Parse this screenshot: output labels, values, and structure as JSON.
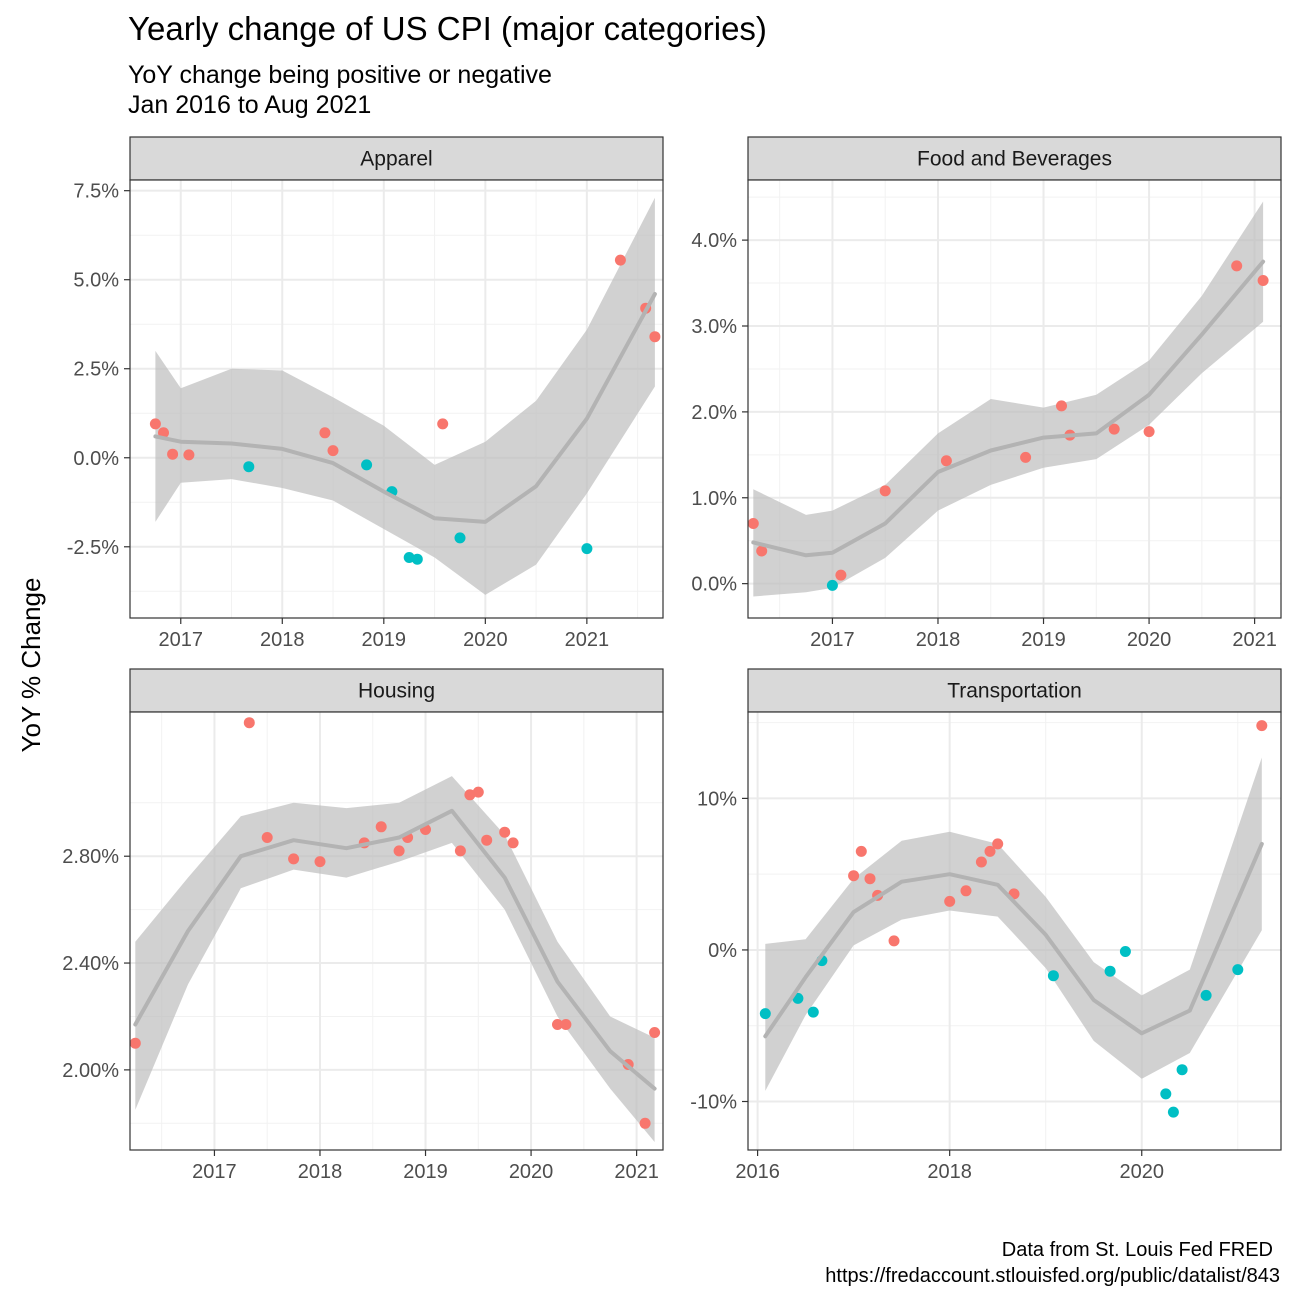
{
  "chart_title": "Yearly change of US CPI (major categories)",
  "subtitle_lines": [
    "YoY change being positive or negative",
    "Jan 2016 to Aug 2021"
  ],
  "y_axis_label": "YoY % Change",
  "caption_lines": [
    "Data from St. Louis Fed FRED",
    "https://fredaccount.stlouisfed.org/public/datalist/843"
  ],
  "colors": {
    "positive": "#F8766D",
    "negative": "#00BFC4",
    "smooth_line": "#B3B3B3",
    "ribbon": "#BEBEBE",
    "strip_bg": "#D9D9D9",
    "grid_major": "#EBEBEB",
    "grid_minor": "#F2F2F2"
  },
  "chart_data": [
    {
      "type": "scatter",
      "panel": "Apparel",
      "x_unit": "year",
      "xlim": [
        2016.5,
        2021.75
      ],
      "ylim": [
        -4.5,
        7.8
      ],
      "x_ticks": [
        2017,
        2018,
        2019,
        2020,
        2021
      ],
      "x_tick_labels": [
        "2017",
        "2018",
        "2019",
        "2020",
        "2021"
      ],
      "y_ticks": [
        -2.5,
        0,
        2.5,
        5,
        7.5
      ],
      "y_tick_labels": [
        "-2.5%",
        "0.0%",
        "2.5%",
        "5.0%",
        "7.5%"
      ],
      "points": [
        {
          "x": 2016.75,
          "y": 0.95
        },
        {
          "x": 2016.83,
          "y": 0.7
        },
        {
          "x": 2016.92,
          "y": 0.1
        },
        {
          "x": 2017.08,
          "y": 0.08
        },
        {
          "x": 2017.67,
          "y": -0.25
        },
        {
          "x": 2018.42,
          "y": 0.7
        },
        {
          "x": 2018.5,
          "y": 0.2
        },
        {
          "x": 2018.83,
          "y": -0.2
        },
        {
          "x": 2019.08,
          "y": -0.95
        },
        {
          "x": 2019.25,
          "y": -2.8
        },
        {
          "x": 2019.33,
          "y": -2.85
        },
        {
          "x": 2019.58,
          "y": 0.95
        },
        {
          "x": 2019.75,
          "y": -2.25
        },
        {
          "x": 2021.0,
          "y": -2.55
        },
        {
          "x": 2021.33,
          "y": 5.55
        },
        {
          "x": 2021.58,
          "y": 4.2
        },
        {
          "x": 2021.67,
          "y": 3.4
        }
      ],
      "smooth": [
        {
          "x": 2016.75,
          "y": 0.6,
          "lo": -1.8,
          "hi": 3.0
        },
        {
          "x": 2017.0,
          "y": 0.45,
          "lo": -0.7,
          "hi": 1.95
        },
        {
          "x": 2017.5,
          "y": 0.4,
          "lo": -0.6,
          "hi": 2.5
        },
        {
          "x": 2018.0,
          "y": 0.25,
          "lo": -0.85,
          "hi": 2.45
        },
        {
          "x": 2018.5,
          "y": -0.15,
          "lo": -1.2,
          "hi": 1.7
        },
        {
          "x": 2019.0,
          "y": -0.95,
          "lo": -2.0,
          "hi": 0.9
        },
        {
          "x": 2019.5,
          "y": -1.7,
          "lo": -2.8,
          "hi": -0.2
        },
        {
          "x": 2020.0,
          "y": -1.8,
          "lo": -3.85,
          "hi": 0.45
        },
        {
          "x": 2020.5,
          "y": -0.8,
          "lo": -3.0,
          "hi": 1.6
        },
        {
          "x": 2021.0,
          "y": 1.1,
          "lo": -1.0,
          "hi": 3.6
        },
        {
          "x": 2021.67,
          "y": 4.6,
          "lo": 2.0,
          "hi": 7.3
        }
      ]
    },
    {
      "type": "scatter",
      "panel": "Food and Beverages",
      "x_unit": "year",
      "xlim": [
        2016.2,
        2021.25
      ],
      "ylim": [
        -0.4,
        4.7
      ],
      "x_ticks": [
        2017,
        2018,
        2019,
        2020,
        2021
      ],
      "x_tick_labels": [
        "2017",
        "2018",
        "2019",
        "2020",
        "2021"
      ],
      "y_ticks": [
        0,
        1,
        2,
        3,
        4
      ],
      "y_tick_labels": [
        "0.0%",
        "1.0%",
        "2.0%",
        "3.0%",
        "4.0%"
      ],
      "points": [
        {
          "x": 2016.25,
          "y": 0.7
        },
        {
          "x": 2016.33,
          "y": 0.38
        },
        {
          "x": 2017.0,
          "y": -0.02
        },
        {
          "x": 2017.08,
          "y": 0.1
        },
        {
          "x": 2017.5,
          "y": 1.08
        },
        {
          "x": 2018.08,
          "y": 1.43
        },
        {
          "x": 2018.83,
          "y": 1.47
        },
        {
          "x": 2019.17,
          "y": 2.07
        },
        {
          "x": 2019.25,
          "y": 1.73
        },
        {
          "x": 2019.67,
          "y": 1.8
        },
        {
          "x": 2020.0,
          "y": 1.77
        },
        {
          "x": 2020.83,
          "y": 3.7
        },
        {
          "x": 2021.08,
          "y": 3.53
        }
      ],
      "smooth": [
        {
          "x": 2016.25,
          "y": 0.48,
          "lo": -0.15,
          "hi": 1.1
        },
        {
          "x": 2016.75,
          "y": 0.33,
          "lo": -0.1,
          "hi": 0.8
        },
        {
          "x": 2017.0,
          "y": 0.36,
          "lo": -0.05,
          "hi": 0.85
        },
        {
          "x": 2017.5,
          "y": 0.7,
          "lo": 0.3,
          "hi": 1.15
        },
        {
          "x": 2018.0,
          "y": 1.3,
          "lo": 0.85,
          "hi": 1.75
        },
        {
          "x": 2018.5,
          "y": 1.55,
          "lo": 1.15,
          "hi": 2.15
        },
        {
          "x": 2019.0,
          "y": 1.7,
          "lo": 1.35,
          "hi": 2.05
        },
        {
          "x": 2019.5,
          "y": 1.75,
          "lo": 1.45,
          "hi": 2.2
        },
        {
          "x": 2020.0,
          "y": 2.2,
          "lo": 1.85,
          "hi": 2.6
        },
        {
          "x": 2020.5,
          "y": 2.9,
          "lo": 2.45,
          "hi": 3.35
        },
        {
          "x": 2021.08,
          "y": 3.75,
          "lo": 3.05,
          "hi": 4.45
        }
      ]
    },
    {
      "type": "scatter",
      "panel": "Housing",
      "x_unit": "year",
      "xlim": [
        2016.2,
        2021.25
      ],
      "ylim": [
        1.7,
        3.34
      ],
      "x_ticks": [
        2017,
        2018,
        2019,
        2020,
        2021
      ],
      "x_tick_labels": [
        "2017",
        "2018",
        "2019",
        "2020",
        "2021"
      ],
      "y_ticks": [
        2.0,
        2.4,
        2.8
      ],
      "y_tick_labels": [
        "2.00%",
        "2.40%",
        "2.80%"
      ],
      "points": [
        {
          "x": 2016.25,
          "y": 2.1
        },
        {
          "x": 2017.33,
          "y": 3.3
        },
        {
          "x": 2017.5,
          "y": 2.87
        },
        {
          "x": 2017.75,
          "y": 2.79
        },
        {
          "x": 2018.0,
          "y": 2.78
        },
        {
          "x": 2018.42,
          "y": 2.85
        },
        {
          "x": 2018.58,
          "y": 2.91
        },
        {
          "x": 2018.75,
          "y": 2.82
        },
        {
          "x": 2018.83,
          "y": 2.87
        },
        {
          "x": 2019.0,
          "y": 2.9
        },
        {
          "x": 2019.33,
          "y": 2.82
        },
        {
          "x": 2019.42,
          "y": 3.03
        },
        {
          "x": 2019.5,
          "y": 3.04
        },
        {
          "x": 2019.58,
          "y": 2.86
        },
        {
          "x": 2019.75,
          "y": 2.89
        },
        {
          "x": 2019.83,
          "y": 2.85
        },
        {
          "x": 2020.25,
          "y": 2.17
        },
        {
          "x": 2020.33,
          "y": 2.17
        },
        {
          "x": 2020.92,
          "y": 2.02
        },
        {
          "x": 2021.08,
          "y": 1.8
        },
        {
          "x": 2021.17,
          "y": 2.14
        }
      ],
      "smooth": [
        {
          "x": 2016.25,
          "y": 2.17,
          "lo": 1.85,
          "hi": 2.48
        },
        {
          "x": 2016.75,
          "y": 2.52,
          "lo": 2.32,
          "hi": 2.72
        },
        {
          "x": 2017.25,
          "y": 2.8,
          "lo": 2.68,
          "hi": 2.95
        },
        {
          "x": 2017.75,
          "y": 2.86,
          "lo": 2.75,
          "hi": 3.0
        },
        {
          "x": 2018.25,
          "y": 2.83,
          "lo": 2.72,
          "hi": 2.98
        },
        {
          "x": 2018.75,
          "y": 2.87,
          "lo": 2.78,
          "hi": 3.0
        },
        {
          "x": 2019.25,
          "y": 2.97,
          "lo": 2.85,
          "hi": 3.1
        },
        {
          "x": 2019.75,
          "y": 2.72,
          "lo": 2.6,
          "hi": 2.88
        },
        {
          "x": 2020.25,
          "y": 2.33,
          "lo": 2.2,
          "hi": 2.48
        },
        {
          "x": 2020.75,
          "y": 2.07,
          "lo": 1.93,
          "hi": 2.2
        },
        {
          "x": 2021.17,
          "y": 1.93,
          "lo": 1.73,
          "hi": 2.12
        }
      ]
    },
    {
      "type": "scatter",
      "panel": "Transportation",
      "x_unit": "year",
      "xlim": [
        2015.9,
        2021.45
      ],
      "ylim": [
        -13.2,
        15.7
      ],
      "x_ticks": [
        2016,
        2018,
        2020
      ],
      "x_tick_labels": [
        "2016",
        "2018",
        "2020"
      ],
      "y_ticks": [
        -10,
        0,
        10
      ],
      "y_tick_labels": [
        "-10%",
        "0%",
        "10%"
      ],
      "points": [
        {
          "x": 2016.08,
          "y": -4.2
        },
        {
          "x": 2016.42,
          "y": -3.2
        },
        {
          "x": 2016.58,
          "y": -4.1
        },
        {
          "x": 2016.67,
          "y": -0.7
        },
        {
          "x": 2017.0,
          "y": 4.9
        },
        {
          "x": 2017.08,
          "y": 6.5
        },
        {
          "x": 2017.17,
          "y": 4.7
        },
        {
          "x": 2017.25,
          "y": 3.6
        },
        {
          "x": 2017.42,
          "y": 0.6
        },
        {
          "x": 2018.0,
          "y": 3.2
        },
        {
          "x": 2018.17,
          "y": 3.9
        },
        {
          "x": 2018.33,
          "y": 5.8
        },
        {
          "x": 2018.42,
          "y": 6.5
        },
        {
          "x": 2018.5,
          "y": 7.0
        },
        {
          "x": 2018.67,
          "y": 3.7
        },
        {
          "x": 2019.08,
          "y": -1.7
        },
        {
          "x": 2019.67,
          "y": -1.4
        },
        {
          "x": 2019.83,
          "y": -0.1
        },
        {
          "x": 2020.25,
          "y": -9.5
        },
        {
          "x": 2020.33,
          "y": -10.7
        },
        {
          "x": 2020.42,
          "y": -7.9
        },
        {
          "x": 2020.67,
          "y": -3.0
        },
        {
          "x": 2021.0,
          "y": -1.3
        },
        {
          "x": 2021.25,
          "y": 14.8
        }
      ],
      "smooth": [
        {
          "x": 2016.08,
          "y": -5.7,
          "lo": -9.3,
          "hi": 0.4
        },
        {
          "x": 2016.5,
          "y": -1.8,
          "lo": -4.3,
          "hi": 0.7
        },
        {
          "x": 2017.0,
          "y": 2.5,
          "lo": 0.3,
          "hi": 4.7
        },
        {
          "x": 2017.5,
          "y": 4.5,
          "lo": 2.0,
          "hi": 7.2
        },
        {
          "x": 2018.0,
          "y": 5.0,
          "lo": 2.6,
          "hi": 7.8
        },
        {
          "x": 2018.5,
          "y": 4.3,
          "lo": 2.2,
          "hi": 7.0
        },
        {
          "x": 2019.0,
          "y": 1.0,
          "lo": -1.2,
          "hi": 3.5
        },
        {
          "x": 2019.5,
          "y": -3.3,
          "lo": -6.0,
          "hi": -0.8
        },
        {
          "x": 2020.0,
          "y": -5.5,
          "lo": -8.5,
          "hi": -3.0
        },
        {
          "x": 2020.5,
          "y": -4.0,
          "lo": -6.8,
          "hi": -1.3
        },
        {
          "x": 2021.25,
          "y": 7.0,
          "lo": 1.3,
          "hi": 12.7
        }
      ]
    }
  ]
}
